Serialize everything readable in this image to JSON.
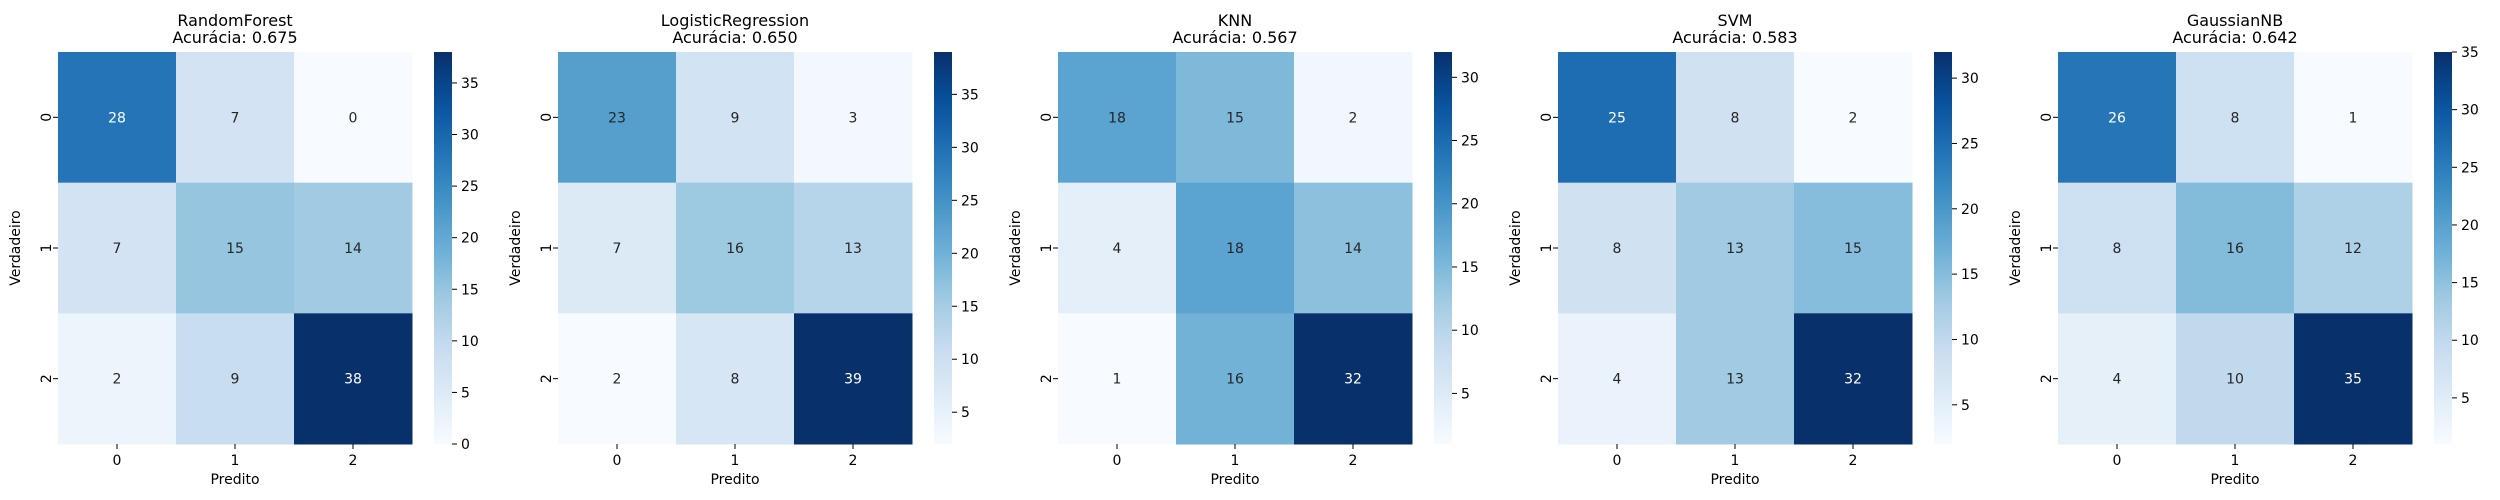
{
  "chart_data": [
    {
      "type": "heatmap",
      "title_line1": "RandomForest",
      "title_line2": "Acurácia: 0.675",
      "xlabel": "Predito",
      "ylabel": "Verdadeiro",
      "x_categories": [
        "0",
        "1",
        "2"
      ],
      "y_categories": [
        "0",
        "1",
        "2"
      ],
      "matrix": [
        [
          28,
          7,
          0
        ],
        [
          7,
          15,
          14
        ],
        [
          2,
          9,
          38
        ]
      ],
      "vmin": 0,
      "vmax": 38,
      "colorbar_ticks": [
        0,
        5,
        10,
        15,
        20,
        25,
        30,
        35
      ],
      "colormap": "Blues"
    },
    {
      "type": "heatmap",
      "title_line1": "LogisticRegression",
      "title_line2": "Acurácia: 0.650",
      "xlabel": "Predito",
      "ylabel": "Verdadeiro",
      "x_categories": [
        "0",
        "1",
        "2"
      ],
      "y_categories": [
        "0",
        "1",
        "2"
      ],
      "matrix": [
        [
          23,
          9,
          3
        ],
        [
          7,
          16,
          13
        ],
        [
          2,
          8,
          39
        ]
      ],
      "vmin": 2,
      "vmax": 39,
      "colorbar_ticks": [
        5,
        10,
        15,
        20,
        25,
        30,
        35
      ],
      "colormap": "Blues"
    },
    {
      "type": "heatmap",
      "title_line1": "KNN",
      "title_line2": "Acurácia: 0.567",
      "xlabel": "Predito",
      "ylabel": "Verdadeiro",
      "x_categories": [
        "0",
        "1",
        "2"
      ],
      "y_categories": [
        "0",
        "1",
        "2"
      ],
      "matrix": [
        [
          18,
          15,
          2
        ],
        [
          4,
          18,
          14
        ],
        [
          1,
          16,
          32
        ]
      ],
      "vmin": 1,
      "vmax": 32,
      "colorbar_ticks": [
        5,
        10,
        15,
        20,
        25,
        30
      ],
      "colormap": "Blues"
    },
    {
      "type": "heatmap",
      "title_line1": "SVM",
      "title_line2": "Acurácia: 0.583",
      "xlabel": "Predito",
      "ylabel": "Verdadeiro",
      "x_categories": [
        "0",
        "1",
        "2"
      ],
      "y_categories": [
        "0",
        "1",
        "2"
      ],
      "matrix": [
        [
          25,
          8,
          2
        ],
        [
          8,
          13,
          15
        ],
        [
          4,
          13,
          32
        ]
      ],
      "vmin": 2,
      "vmax": 32,
      "colorbar_ticks": [
        5,
        10,
        15,
        20,
        25,
        30
      ],
      "colormap": "Blues"
    },
    {
      "type": "heatmap",
      "title_line1": "GaussianNB",
      "title_line2": "Acurácia: 0.642",
      "xlabel": "Predito",
      "ylabel": "Verdadeiro",
      "x_categories": [
        "0",
        "1",
        "2"
      ],
      "y_categories": [
        "0",
        "1",
        "2"
      ],
      "matrix": [
        [
          26,
          8,
          1
        ],
        [
          8,
          16,
          12
        ],
        [
          4,
          10,
          35
        ]
      ],
      "vmin": 1,
      "vmax": 35,
      "colorbar_ticks": [
        5,
        10,
        15,
        20,
        25,
        30,
        35
      ],
      "colormap": "Blues"
    }
  ]
}
